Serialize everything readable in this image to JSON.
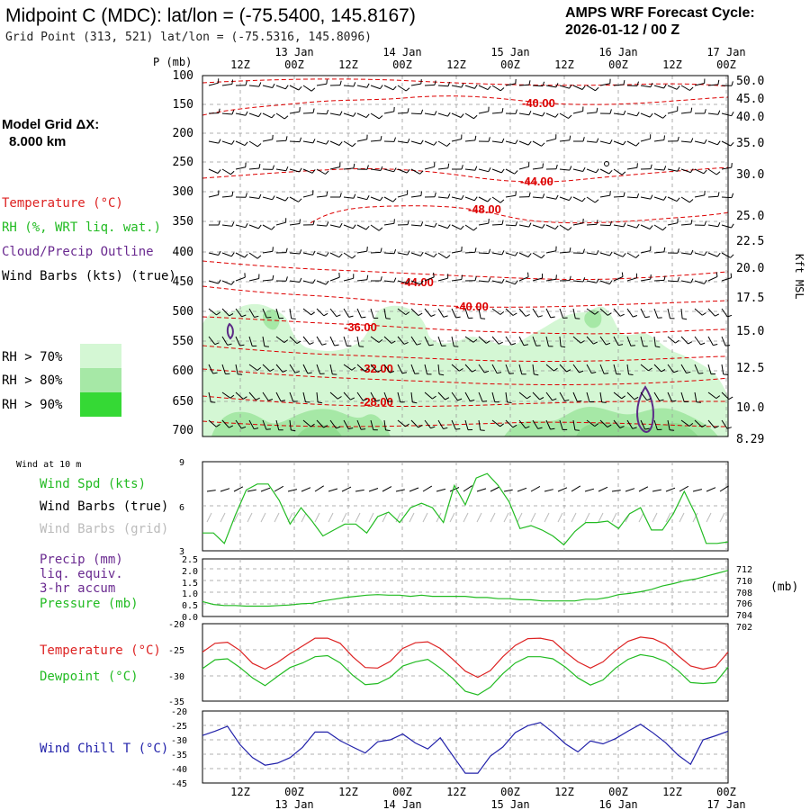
{
  "header": {
    "title": "Midpoint C (MDC):  lat/lon = (-75.5400, 145.8167)",
    "subtitle": "Grid Point (313, 521) lat/lon = (-75.5316, 145.8096)",
    "forecast_line1": "AMPS WRF Forecast Cycle:",
    "forecast_line2": "2026-01-12 / 00  Z"
  },
  "legend": {
    "model_grid_line1": "Model Grid ΔX:",
    "model_grid_line2": "8.000 km",
    "temperature": "Temperature (°C)",
    "rh": "RH (%, WRT liq. wat.)",
    "cloud": "Cloud/Precip Outline",
    "wind_barbs": "Wind Barbs (kts) (true)",
    "rh70": "RH > 70%",
    "rh80": "RH > 80%",
    "rh90": "RH > 90%",
    "colors": {
      "rh70": "#d4f7d4",
      "rh80": "#a6e8a6",
      "rh90": "#35d935",
      "temp": "#dd0000",
      "cloud": "#5b2a86"
    }
  },
  "time_axis": {
    "bottom_hours": [
      "12Z",
      "00Z",
      "12Z",
      "00Z",
      "12Z",
      "00Z",
      "12Z",
      "00Z",
      "12Z",
      "00Z"
    ],
    "top_hours": [
      "12Z",
      "00Z",
      "12Z",
      "00Z",
      "12Z",
      "00Z",
      "12Z",
      "00Z",
      "12Z",
      "00Z"
    ],
    "dates": [
      "13 Jan",
      "14 Jan",
      "15 Jan",
      "16 Jan",
      "17 Jan"
    ]
  },
  "chart_data": [
    {
      "type": "cross-section",
      "name": "vertical-profile",
      "y_axis_label": "P (mb)",
      "y_right_label": "Kft MSL",
      "pressure_ticks": [
        "100",
        "150",
        "200",
        "250",
        "300",
        "350",
        "400",
        "450",
        "500",
        "550",
        "600",
        "650",
        "700"
      ],
      "height_ticks": [
        "50.0",
        "45.0",
        "40.0",
        "35.0",
        "30.0",
        "25.0",
        "22.5",
        "20.0",
        "17.5",
        "15.0",
        "12.5",
        "10.0",
        "8.29"
      ],
      "temperature_labels": [
        "-40.00",
        "-44.00",
        "-48.00",
        "-44.00",
        "-40.00",
        "-36.00",
        "-32.00",
        "-28.00"
      ]
    },
    {
      "type": "line",
      "name": "wind-10m",
      "header": "Wind at 10 m",
      "labels": {
        "speed": "Wind Spd (kts)",
        "barbs_true": "Wind Barbs (true)",
        "barbs_grid": "Wind Barbs (grid)"
      },
      "y_ticks": [
        "9",
        "6",
        "3"
      ],
      "ylim": [
        3,
        9
      ],
      "series": [
        {
          "name": "Wind Spd (kts)",
          "color": "#22bb22",
          "values": [
            4.2,
            4.2,
            3.5,
            5.4,
            7.1,
            7.5,
            7.5,
            6.4,
            4.8,
            5.9,
            5.0,
            4.0,
            4.4,
            4.8,
            4.8,
            4.2,
            5.3,
            5.6,
            4.9,
            5.9,
            6.2,
            5.9,
            4.9,
            7.4,
            6.1,
            7.9,
            8.2,
            7.4,
            6.3,
            4.5,
            4.7,
            4.4,
            4.0,
            3.4,
            4.3,
            4.9,
            4.9,
            5.0,
            4.5,
            5.5,
            5.9,
            4.4,
            4.4,
            5.5,
            7.0,
            5.5,
            3.5,
            3.5,
            3.6
          ]
        }
      ]
    },
    {
      "type": "line",
      "name": "precip-pressure",
      "labels": {
        "precip1": "Precip (mm)",
        "precip2": "liq. equiv.",
        "precip3": "3-hr accum",
        "pressure": "Pressure (mb)",
        "units_right": "(mb)"
      },
      "y_ticks_left": [
        "2.5",
        "2.0",
        "1.5",
        "1.0",
        "0.5",
        "0.0"
      ],
      "y_ticks_right": [
        "712",
        "710",
        "708",
        "706",
        "704",
        "702"
      ],
      "ylim_left": [
        0,
        2.5
      ],
      "ylim_right": [
        702,
        712
      ],
      "series": [
        {
          "name": "Pressure (mb)",
          "color": "#22bb22",
          "values": [
            704.6,
            704.1,
            703.9,
            703.9,
            703.8,
            703.8,
            703.8,
            703.9,
            704.0,
            704.2,
            704.3,
            704.7,
            705.0,
            705.3,
            705.5,
            705.7,
            705.8,
            705.7,
            705.7,
            705.5,
            705.7,
            705.5,
            705.5,
            705.5,
            705.5,
            705.3,
            705.3,
            705.1,
            705.1,
            704.9,
            704.9,
            704.7,
            704.7,
            704.7,
            704.7,
            705.0,
            705.0,
            705.3,
            705.8,
            706.0,
            706.3,
            706.7,
            707.3,
            707.7,
            708.2,
            708.5,
            709.0,
            709.5,
            710.0
          ]
        }
      ]
    },
    {
      "type": "line",
      "name": "temp-dewpoint",
      "labels": {
        "temperature": "Temperature (°C)",
        "dewpoint": "Dewpoint (°C)"
      },
      "y_ticks": [
        "-20",
        "-25",
        "-30",
        "-35"
      ],
      "ylim": [
        -35,
        -20
      ],
      "series": [
        {
          "name": "Temperature (°C)",
          "color": "#dd2222",
          "values": [
            -25.5,
            -23.8,
            -23.6,
            -25.2,
            -27.7,
            -28.8,
            -27.5,
            -25.8,
            -24.3,
            -22.8,
            -22.8,
            -23.8,
            -26.4,
            -28.5,
            -28.6,
            -27.3,
            -24.8,
            -23.7,
            -23.5,
            -24.8,
            -26.9,
            -29.2,
            -30.4,
            -29.1,
            -26.4,
            -24.2,
            -22.9,
            -22.8,
            -23.3,
            -25.5,
            -27.4,
            -28.6,
            -27.4,
            -25.2,
            -23.4,
            -22.6,
            -22.9,
            -24.0,
            -26.2,
            -28.2,
            -28.8,
            -28.3,
            -25.5
          ]
        },
        {
          "name": "Dewpoint (°C)",
          "color": "#22bb22",
          "values": [
            -28.7,
            -27.0,
            -26.8,
            -28.5,
            -30.5,
            -32.0,
            -30.2,
            -28.5,
            -27.6,
            -26.4,
            -26.2,
            -27.6,
            -30.0,
            -31.8,
            -31.6,
            -30.4,
            -28.2,
            -27.4,
            -26.9,
            -28.6,
            -30.6,
            -33.1,
            -33.8,
            -32.3,
            -29.7,
            -27.6,
            -26.4,
            -26.4,
            -26.8,
            -28.4,
            -30.5,
            -31.9,
            -30.9,
            -28.6,
            -26.9,
            -26.0,
            -26.4,
            -27.3,
            -29.1,
            -31.4,
            -31.6,
            -31.4,
            -28.4
          ]
        }
      ]
    },
    {
      "type": "line",
      "name": "wind-chill",
      "labels": {
        "wind_chill": "Wind Chill T (°C)"
      },
      "y_ticks": [
        "-20",
        "-25",
        "-30",
        "-35",
        "-40",
        "-45"
      ],
      "ylim": [
        -45,
        -20
      ],
      "series": [
        {
          "name": "Wind Chill T (°C)",
          "color": "#2222aa",
          "values": [
            -28.5,
            -27.0,
            -25.3,
            -31.7,
            -36.2,
            -38.8,
            -38.1,
            -36.2,
            -32.6,
            -27.3,
            -27.3,
            -30.3,
            -32.5,
            -34.6,
            -30.7,
            -30.0,
            -28.0,
            -31.1,
            -33.2,
            -29.3,
            -35.5,
            -41.6,
            -41.6,
            -35.7,
            -32.5,
            -27.5,
            -25.1,
            -24.0,
            -27.4,
            -31.4,
            -34.2,
            -30.4,
            -31.4,
            -29.6,
            -27.0,
            -24.6,
            -27.6,
            -31.0,
            -35.3,
            -38.5,
            -30.0,
            -28.6,
            -27.0
          ]
        }
      ]
    }
  ]
}
